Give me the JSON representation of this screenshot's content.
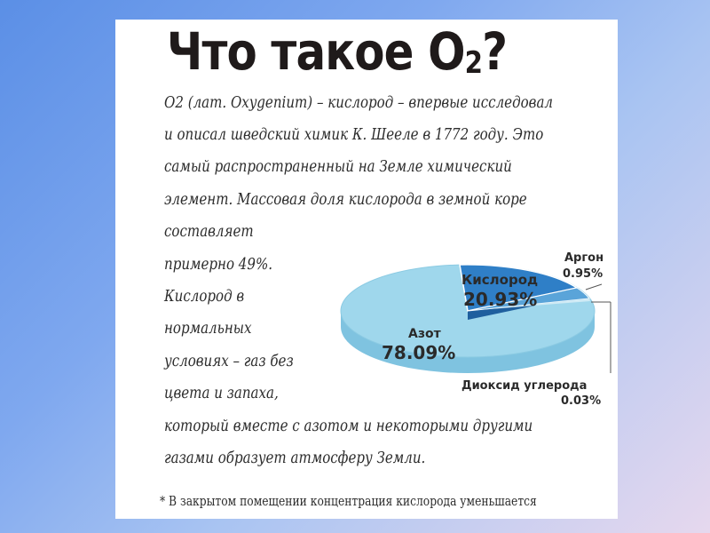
{
  "title": {
    "main": "Что такое О",
    "sub": "2",
    "end": "?"
  },
  "lines": [
    "О2 (лат. Oxygenium) – кислород – впервые исследовал",
    "и описал шведский химик К. Шееле в 1772 году. Это",
    "самый распространенный на Земле химический",
    "элемент. Массовая доля кислорода в земной коре",
    "составляет",
    "примерно 49%.",
    "Кислород в",
    "нормальных",
    "условиях – газ без",
    "цвета и запаха,",
    "который вместе с азотом и некоторыми другими",
    "газами образует атмосферу Земли."
  ],
  "footnote": "* В закрытом помещении концентрация кислорода уменьшается",
  "chart_data": {
    "type": "pie",
    "slices": [
      {
        "name": "Азот",
        "value": 78.09,
        "label": "78.09%",
        "color": "#9fd7ec"
      },
      {
        "name": "Кислород",
        "value": 20.93,
        "label": "20.93%",
        "color": "#2f7fc7"
      },
      {
        "name": "Аргон",
        "value": 0.95,
        "label": "0.95%",
        "color": "#5aa4d9"
      },
      {
        "name": "Диоксид углерода",
        "value": 0.03,
        "label": "0.03%",
        "color": "#cfeaf5"
      }
    ]
  }
}
